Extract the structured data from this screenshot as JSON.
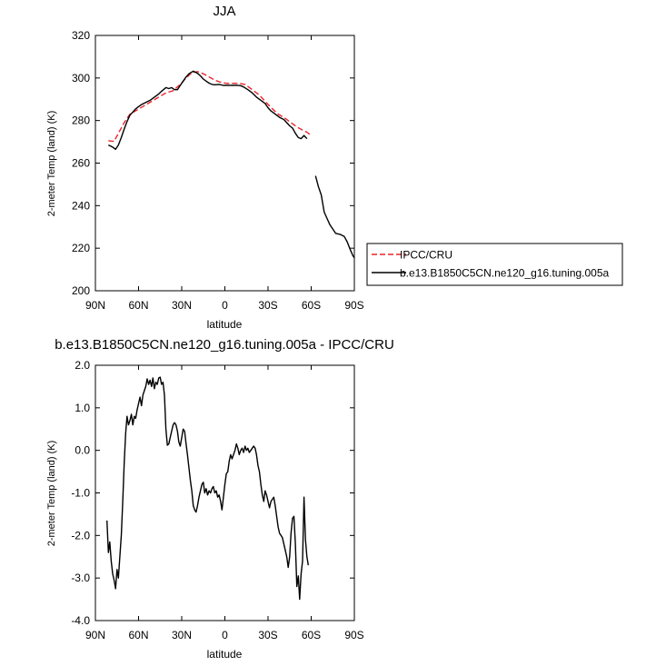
{
  "chart_data": [
    {
      "type": "line",
      "title": "JJA",
      "xlabel": "latitude",
      "ylabel": "2-meter Temp (land) (K)",
      "xlim": [
        90,
        -90
      ],
      "ylim": [
        200,
        320
      ],
      "x_ticks": [
        90,
        60,
        30,
        0,
        -30,
        -60,
        -90
      ],
      "x_tick_labels": [
        "90N",
        "60N",
        "30N",
        "0",
        "30S",
        "60S",
        "90S"
      ],
      "y_ticks": [
        200,
        220,
        240,
        260,
        280,
        300,
        320
      ],
      "y_tick_labels": [
        "200",
        "220",
        "240",
        "260",
        "280",
        "300",
        "320"
      ],
      "legend": "outside-right",
      "series": [
        {
          "name": "IPCC/CRU",
          "color": "#e8232a",
          "dash": "dashed",
          "points": [
            [
              81,
              270.5
            ],
            [
              77,
              270.2
            ],
            [
              74,
              274
            ],
            [
              70,
              279
            ],
            [
              66,
              283
            ],
            [
              61,
              285
            ],
            [
              56,
              287
            ],
            [
              51,
              289
            ],
            [
              46,
              291
            ],
            [
              41,
              293
            ],
            [
              36,
              294
            ],
            [
              31,
              297
            ],
            [
              27,
              300
            ],
            [
              23,
              302.5
            ],
            [
              19,
              303
            ],
            [
              15,
              302
            ],
            [
              11,
              300.5
            ],
            [
              7,
              299
            ],
            [
              3,
              298
            ],
            [
              -1,
              297.5
            ],
            [
              -5,
              297.5
            ],
            [
              -10,
              297.5
            ],
            [
              -14,
              297
            ],
            [
              -19,
              294.5
            ],
            [
              -24,
              292
            ],
            [
              -28,
              289
            ],
            [
              -33,
              285.5
            ],
            [
              -37,
              283
            ],
            [
              -42,
              281
            ],
            [
              -46,
              279
            ],
            [
              -50,
              277
            ],
            [
              -54,
              275.5
            ],
            [
              -57,
              274.5
            ],
            [
              -59,
              273.5
            ]
          ]
        },
        {
          "name": "b.e13.B1850C5CN.ne120_g16.tuning.005a",
          "color": "#000000",
          "dash": "solid",
          "segments": [
            [
              [
                81,
                268.5
              ],
              [
                78,
                267.5
              ],
              [
                76,
                266.5
              ],
              [
                74,
                268.5
              ],
              [
                72,
                272
              ],
              [
                70,
                276
              ],
              [
                68,
                279.5
              ],
              [
                66,
                282.5
              ],
              [
                64,
                284
              ],
              [
                62,
                285.5
              ],
              [
                60,
                286.5
              ],
              [
                58,
                287.5
              ],
              [
                55,
                288.5
              ],
              [
                52,
                289.5
              ],
              [
                49,
                291
              ],
              [
                46,
                292.5
              ],
              [
                44,
                293.8
              ],
              [
                41,
                295.5
              ],
              [
                39,
                295
              ],
              [
                37,
                295.5
              ],
              [
                35,
                294.5
              ],
              [
                33,
                294.5
              ],
              [
                31,
                296.5
              ],
              [
                29,
                298.5
              ],
              [
                27,
                300.5
              ],
              [
                25,
                302
              ],
              [
                22,
                303.2
              ],
              [
                19,
                302.2
              ],
              [
                17,
                301
              ],
              [
                15,
                299.5
              ],
              [
                13,
                298.5
              ],
              [
                11,
                297.6
              ],
              [
                9,
                297
              ],
              [
                7,
                296.8
              ],
              [
                4,
                297
              ],
              [
                1,
                296.5
              ],
              [
                -2,
                296.6
              ],
              [
                -5,
                296.5
              ],
              [
                -8,
                296.6
              ],
              [
                -11,
                296.4
              ],
              [
                -13,
                295.8
              ],
              [
                -16,
                294.5
              ],
              [
                -19,
                293
              ],
              [
                -22,
                291
              ],
              [
                -25,
                289.5
              ],
              [
                -28,
                288
              ],
              [
                -30,
                286
              ],
              [
                -32,
                284.5
              ],
              [
                -35,
                283
              ],
              [
                -38,
                281.5
              ],
              [
                -41,
                280.5
              ],
              [
                -43,
                279
              ],
              [
                -45,
                277.5
              ],
              [
                -47,
                276.5
              ],
              [
                -49,
                274
              ],
              [
                -51,
                272
              ],
              [
                -53,
                271.5
              ],
              [
                -55,
                273
              ],
              [
                -57,
                271.5
              ]
            ],
            [
              [
                -63,
                254
              ],
              [
                -65,
                249
              ],
              [
                -67,
                245
              ],
              [
                -69,
                237
              ],
              [
                -71,
                234
              ],
              [
                -73,
                231
              ],
              [
                -75,
                229
              ],
              [
                -77,
                227
              ],
              [
                -80,
                226.5
              ],
              [
                -83,
                225.5
              ],
              [
                -85,
                223
              ],
              [
                -87,
                219.5
              ],
              [
                -89,
                216.5
              ],
              [
                -90,
                215.5
              ]
            ]
          ]
        }
      ]
    },
    {
      "type": "line",
      "title": "b.e13.B1850C5CN.ne120_g16.tuning.005a - IPCC/CRU",
      "xlabel": "latitude",
      "ylabel": "2-meter Temp (land) (K)",
      "xlim": [
        90,
        -90
      ],
      "ylim": [
        -4.0,
        2.0
      ],
      "x_ticks": [
        90,
        60,
        30,
        0,
        -30,
        -60,
        -90
      ],
      "x_tick_labels": [
        "90N",
        "60N",
        "30N",
        "0",
        "30S",
        "60S",
        "90S"
      ],
      "y_ticks": [
        -4.0,
        -3.0,
        -2.0,
        -1.0,
        0.0,
        1.0,
        2.0
      ],
      "y_tick_labels": [
        "-4.0",
        "-3.0",
        "-2.0",
        "-1.0",
        "0.0",
        "1.0",
        "2.0"
      ],
      "series": [
        {
          "color": "#000000",
          "dash": "solid",
          "points": [
            [
              82,
              -1.65
            ],
            [
              81,
              -2.4
            ],
            [
              80,
              -2.15
            ],
            [
              79,
              -2.6
            ],
            [
              78,
              -2.9
            ],
            [
              77,
              -3.05
            ],
            [
              76,
              -3.25
            ],
            [
              75,
              -2.8
            ],
            [
              74,
              -3.0
            ],
            [
              73,
              -2.5
            ],
            [
              72,
              -2.0
            ],
            [
              71,
              -1.2
            ],
            [
              70,
              -0.3
            ],
            [
              69,
              0.4
            ],
            [
              68,
              0.8
            ],
            [
              67,
              0.6
            ],
            [
              66,
              0.7
            ],
            [
              65,
              0.85
            ],
            [
              64,
              0.6
            ],
            [
              63,
              0.8
            ],
            [
              62,
              0.75
            ],
            [
              61,
              0.95
            ],
            [
              60,
              1.1
            ],
            [
              59,
              1.25
            ],
            [
              58,
              1.05
            ],
            [
              57,
              1.3
            ],
            [
              56,
              1.4
            ],
            [
              55,
              1.5
            ],
            [
              54,
              1.68
            ],
            [
              53,
              1.55
            ],
            [
              52,
              1.65
            ],
            [
              51,
              1.5
            ],
            [
              50,
              1.7
            ],
            [
              49,
              1.45
            ],
            [
              48,
              1.6
            ],
            [
              47,
              1.55
            ],
            [
              46,
              1.7
            ],
            [
              45,
              1.72
            ],
            [
              44,
              1.55
            ],
            [
              43,
              1.6
            ],
            [
              42,
              1.3
            ],
            [
              41,
              0.5
            ],
            [
              40,
              0.12
            ],
            [
              39,
              0.15
            ],
            [
              38,
              0.3
            ],
            [
              37,
              0.45
            ],
            [
              36,
              0.6
            ],
            [
              35,
              0.65
            ],
            [
              34,
              0.6
            ],
            [
              33,
              0.45
            ],
            [
              32,
              0.2
            ],
            [
              31,
              0.1
            ],
            [
              30,
              0.3
            ],
            [
              29,
              0.5
            ],
            [
              28,
              0.45
            ],
            [
              27,
              0.15
            ],
            [
              26,
              -0.1
            ],
            [
              25,
              -0.4
            ],
            [
              24,
              -0.7
            ],
            [
              23,
              -0.95
            ],
            [
              22,
              -1.3
            ],
            [
              21,
              -1.4
            ],
            [
              20,
              -1.45
            ],
            [
              19,
              -1.3
            ],
            [
              18,
              -1.1
            ],
            [
              17,
              -0.95
            ],
            [
              16,
              -0.8
            ],
            [
              15,
              -0.75
            ],
            [
              14,
              -1.0
            ],
            [
              13,
              -0.9
            ],
            [
              12,
              -1.05
            ],
            [
              11,
              -0.95
            ],
            [
              10,
              -1.0
            ],
            [
              9,
              -0.9
            ],
            [
              8,
              -0.85
            ],
            [
              7,
              -1.0
            ],
            [
              6,
              -0.95
            ],
            [
              5,
              -1.1
            ],
            [
              4,
              -1.05
            ],
            [
              3,
              -1.2
            ],
            [
              2,
              -1.4
            ],
            [
              1,
              -1.1
            ],
            [
              0,
              -0.8
            ],
            [
              -1,
              -0.55
            ],
            [
              -2,
              -0.5
            ],
            [
              -3,
              -0.25
            ],
            [
              -4,
              -0.1
            ],
            [
              -5,
              -0.2
            ],
            [
              -6,
              -0.1
            ],
            [
              -7,
              0.0
            ],
            [
              -8,
              0.15
            ],
            [
              -9,
              0.05
            ],
            [
              -10,
              -0.1
            ],
            [
              -11,
              0.0
            ],
            [
              -12,
              0.05
            ],
            [
              -13,
              -0.05
            ],
            [
              -14,
              0.1
            ],
            [
              -15,
              0.0
            ],
            [
              -16,
              0.05
            ],
            [
              -17,
              -0.05
            ],
            [
              -18,
              0.0
            ],
            [
              -19,
              0.05
            ],
            [
              -20,
              0.1
            ],
            [
              -21,
              0.05
            ],
            [
              -22,
              -0.1
            ],
            [
              -23,
              -0.35
            ],
            [
              -24,
              -0.5
            ],
            [
              -25,
              -0.8
            ],
            [
              -26,
              -1.05
            ],
            [
              -27,
              -1.2
            ],
            [
              -28,
              -0.95
            ],
            [
              -29,
              -1.05
            ],
            [
              -30,
              -1.2
            ],
            [
              -31,
              -1.35
            ],
            [
              -32,
              -1.2
            ],
            [
              -33,
              -1.15
            ],
            [
              -34,
              -1.1
            ],
            [
              -35,
              -1.3
            ],
            [
              -36,
              -1.55
            ],
            [
              -37,
              -1.8
            ],
            [
              -38,
              -1.95
            ],
            [
              -39,
              -2.0
            ],
            [
              -40,
              -2.05
            ],
            [
              -41,
              -2.2
            ],
            [
              -42,
              -2.35
            ],
            [
              -43,
              -2.5
            ],
            [
              -44,
              -2.75
            ],
            [
              -45,
              -2.5
            ],
            [
              -46,
              -1.95
            ],
            [
              -47,
              -1.6
            ],
            [
              -48,
              -1.55
            ],
            [
              -49,
              -2.2
            ],
            [
              -50,
              -3.2
            ],
            [
              -51,
              -2.95
            ],
            [
              -52,
              -3.5
            ],
            [
              -53,
              -2.9
            ],
            [
              -54,
              -2.6
            ],
            [
              -55,
              -1.1
            ],
            [
              -56,
              -2.1
            ],
            [
              -57,
              -2.5
            ],
            [
              -58,
              -2.7
            ]
          ]
        }
      ]
    }
  ]
}
